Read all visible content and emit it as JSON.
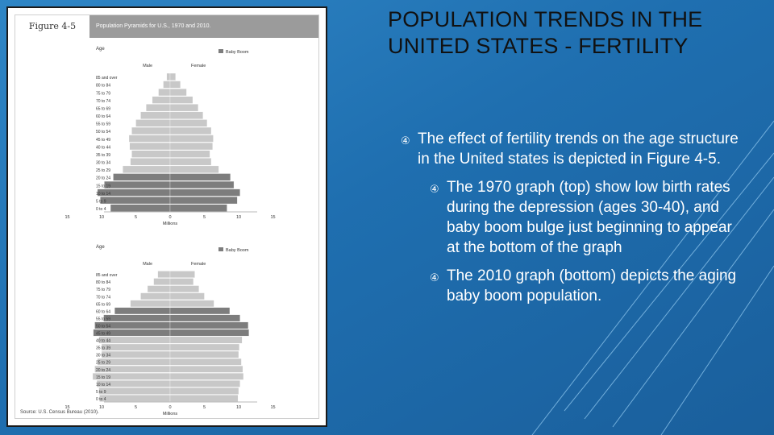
{
  "slide": {
    "title": "POPULATION TRENDS IN THE UNITED STATES - FERTILITY",
    "bullets": [
      {
        "icon": "bullet-arrow-icon",
        "text": "The effect of fertility trends on the age structure in the United states is depicted in Figure 4-5.",
        "sub": [
          {
            "icon": "bullet-arrow-icon",
            "text": "The 1970 graph (top) show low birth rates during the depression (ages 30-40), and baby boom bulge just beginning to appear at the bottom of the graph"
          },
          {
            "icon": "bullet-arrow-icon",
            "text": "The 2010 graph (bottom) depicts the aging baby boom population."
          }
        ]
      }
    ],
    "bullet_glyph": "④",
    "background_color": "#1f6fb0",
    "title_color": "#111111",
    "text_color": "#ffffff"
  },
  "figure": {
    "label": "Figure 4-5",
    "title": "Population Pyramids for U.S., 1970 and 2010.",
    "source": "Source: U.S. Census Bureau (2010).",
    "male_label": "Male",
    "female_label": "Female",
    "legend_label": "Baby Boom",
    "axis_label": "Millions",
    "age_label": "Age",
    "x_ticks": [
      "15",
      "10",
      "5",
      "0",
      "5",
      "10",
      "15"
    ],
    "colors": {
      "normal": "#c8c8c8",
      "boom": "#7d7d7d",
      "title_bar": "#9b9b9b"
    }
  },
  "chart_data": [
    {
      "type": "bar",
      "title": "1970",
      "xlabel": "Millions",
      "ylabel": "Age",
      "xlim": [
        -15,
        15
      ],
      "legend": {
        "entries": [
          "Baby Boom"
        ],
        "placement": "top-right"
      },
      "categories": [
        "0 to 4",
        "5 to 9",
        "10 to 14",
        "15 to 19",
        "20 to 24",
        "25 to 29",
        "30 to 34",
        "35 to 39",
        "40 to 44",
        "45 to 49",
        "50 to 54",
        "55 to 59",
        "60 to 64",
        "65 to 69",
        "70 to 74",
        "75 to 79",
        "80 to 84",
        "85 and over"
      ],
      "series": [
        {
          "name": "Male",
          "values": [
            8.7,
            10.2,
            10.6,
            9.6,
            8.3,
            6.9,
            5.8,
            5.6,
            5.9,
            6.0,
            5.6,
            5.0,
            4.3,
            3.5,
            2.6,
            1.7,
            1.0,
            0.5
          ]
        },
        {
          "name": "Female",
          "values": [
            8.3,
            9.8,
            10.2,
            9.3,
            8.8,
            7.1,
            6.0,
            5.8,
            6.2,
            6.3,
            6.0,
            5.4,
            4.8,
            4.1,
            3.3,
            2.4,
            1.5,
            0.8
          ]
        }
      ],
      "baby_boom_groups": [
        "0 to 4",
        "5 to 9",
        "10 to 14",
        "15 to 19",
        "20 to 24"
      ]
    },
    {
      "type": "bar",
      "title": "2010",
      "xlabel": "Millions",
      "ylabel": "Age",
      "xlim": [
        -15,
        15
      ],
      "legend": {
        "entries": [
          "Baby Boom"
        ],
        "placement": "top-right"
      },
      "categories": [
        "0 to 4",
        "5 to 9",
        "10 to 14",
        "15 to 19",
        "20 to 24",
        "25 to 29",
        "30 to 34",
        "35 to 39",
        "40 to 44",
        "45 to 49",
        "50 to 54",
        "55 to 59",
        "60 to 64",
        "65 to 69",
        "70 to 74",
        "75 to 79",
        "80 to 84",
        "85 and over"
      ],
      "series": [
        {
          "name": "Male",
          "values": [
            10.3,
            10.4,
            10.7,
            11.3,
            11.0,
            10.6,
            10.0,
            10.0,
            10.4,
            11.2,
            11.0,
            9.7,
            8.1,
            5.8,
            4.3,
            3.3,
            2.4,
            1.8
          ]
        },
        {
          "name": "Female",
          "values": [
            9.9,
            10.0,
            10.2,
            10.7,
            10.6,
            10.4,
            10.0,
            10.1,
            10.5,
            11.5,
            11.4,
            10.2,
            8.7,
            6.4,
            5.0,
            4.2,
            3.4,
            3.6
          ]
        }
      ],
      "baby_boom_groups": [
        "45 to 49",
        "50 to 54",
        "55 to 59",
        "60 to 64"
      ]
    }
  ]
}
